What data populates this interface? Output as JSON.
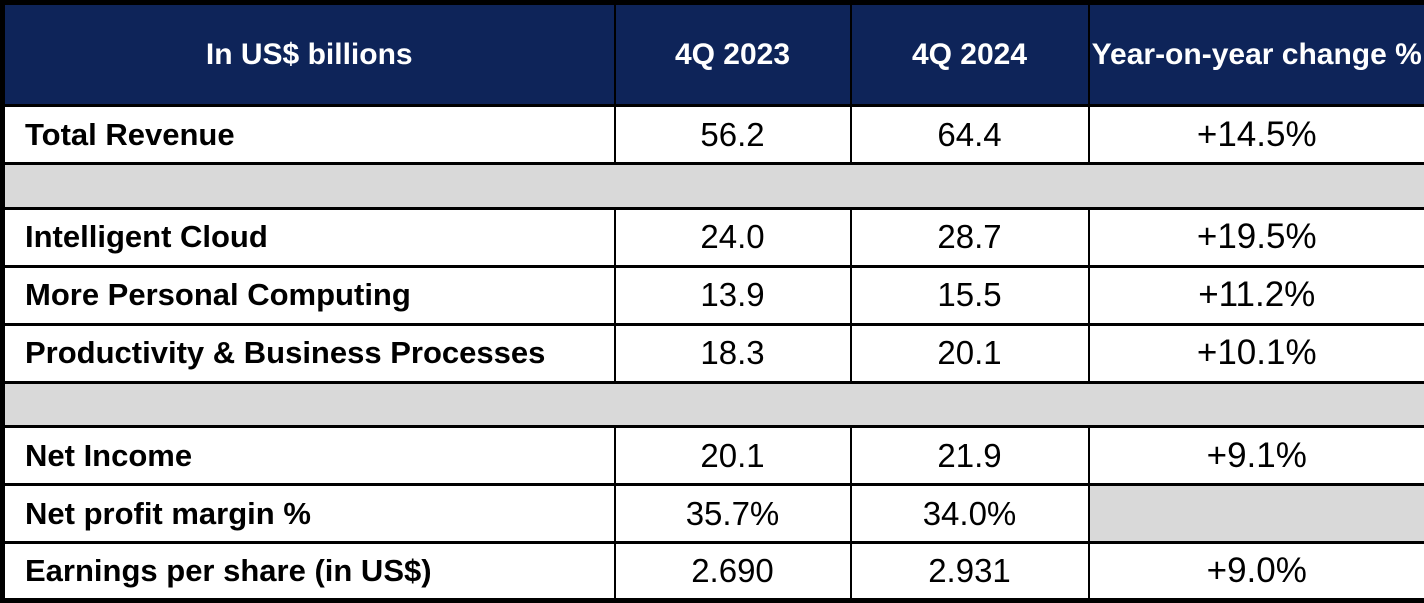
{
  "table": {
    "header": {
      "col_label": "In US$ billions",
      "col_q4_2023": "4Q 2023",
      "col_q4_2024": "4Q 2024",
      "col_yoy": "Year-on-year change %"
    },
    "rows": [
      {
        "label": "Total Revenue",
        "q4_2023": "56.2",
        "q4_2024": "64.4",
        "yoy": "+14.5%"
      },
      {
        "label": "Intelligent Cloud",
        "q4_2023": "24.0",
        "q4_2024": "28.7",
        "yoy": "+19.5%"
      },
      {
        "label": "More Personal Computing",
        "q4_2023": "13.9",
        "q4_2024": "15.5",
        "yoy": "+11.2%"
      },
      {
        "label": "Productivity & Business Processes",
        "q4_2023": "18.3",
        "q4_2024": "20.1",
        "yoy": "+10.1%"
      },
      {
        "label": "Net Income",
        "q4_2023": "20.1",
        "q4_2024": "21.9",
        "yoy": "+9.1%"
      },
      {
        "label": "Net profit margin %",
        "q4_2023": "35.7%",
        "q4_2024": "34.0%",
        "yoy": ""
      },
      {
        "label": "Earnings per share (in US$)",
        "q4_2023": "2.690",
        "q4_2024": "2.931",
        "yoy": "+9.0%"
      }
    ],
    "colors": {
      "header_background": "#0E2459",
      "header_text": "#FFFFFF",
      "spacer_background": "#D9D9D9",
      "border": "#000000",
      "body_text": "#000000"
    }
  },
  "chart_data": {
    "type": "table",
    "title": "In US$ billions",
    "columns": [
      "In US$ billions",
      "4Q 2023",
      "4Q 2024",
      "Year-on-year change %"
    ],
    "rows": [
      [
        "Total Revenue",
        56.2,
        64.4,
        "+14.5%"
      ],
      [
        "Intelligent Cloud",
        24.0,
        28.7,
        "+19.5%"
      ],
      [
        "More Personal Computing",
        13.9,
        15.5,
        "+11.2%"
      ],
      [
        "Productivity & Business Processes",
        18.3,
        20.1,
        "+10.1%"
      ],
      [
        "Net Income",
        20.1,
        21.9,
        "+9.1%"
      ],
      [
        "Net profit margin %",
        "35.7%",
        "34.0%",
        null
      ],
      [
        "Earnings per share (in US$)",
        2.69,
        2.931,
        "+9.0%"
      ]
    ],
    "notes": "Gray spacer bands after row 1 and row 4; year-on-year cell blank (gray) for Net profit margin % row"
  }
}
